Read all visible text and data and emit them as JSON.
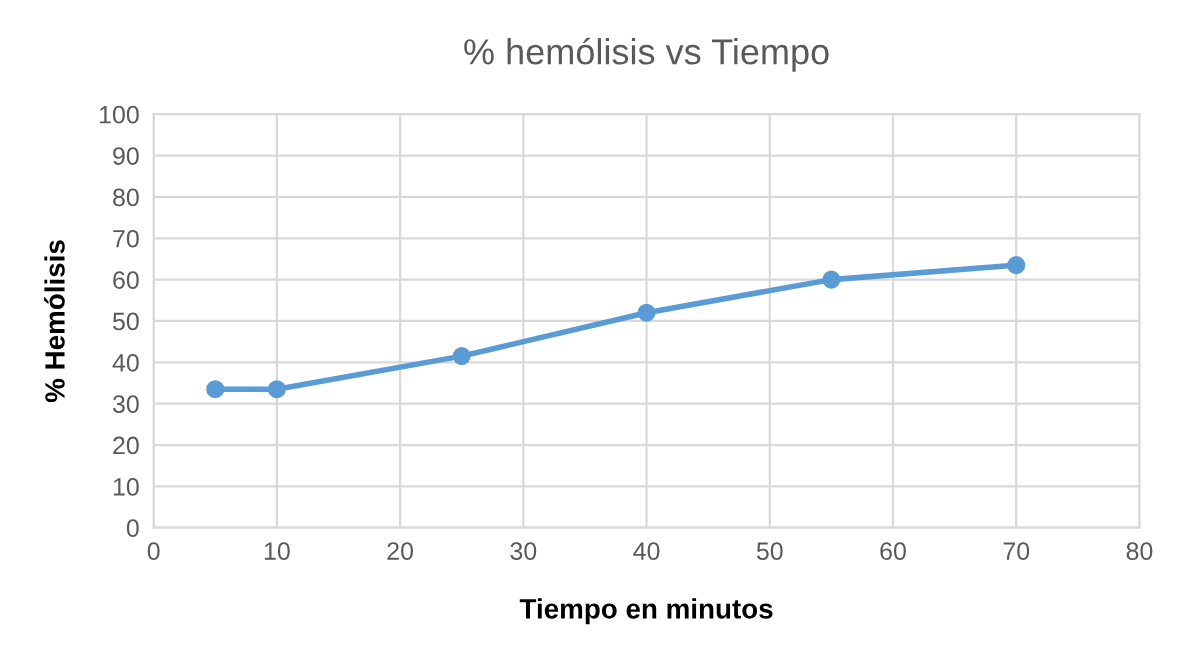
{
  "chart_data": {
    "type": "line",
    "title": "% hemólisis vs Tiempo",
    "xlabel": "Tiempo en minutos",
    "ylabel": "% Hemólisis",
    "x": [
      5,
      10,
      25,
      40,
      55,
      70
    ],
    "series": [
      {
        "color": "#5b9bd5",
        "values": [
          33.5,
          33.5,
          41.5,
          52,
          60,
          63.5
        ]
      }
    ],
    "xlim": [
      0,
      80
    ],
    "xticks": [
      0,
      10,
      20,
      30,
      40,
      50,
      60,
      70,
      80
    ],
    "ylim": [
      0,
      100
    ],
    "yticks": [
      0,
      10,
      20,
      30,
      40,
      50,
      60,
      70,
      80,
      90,
      100
    ],
    "grid": true,
    "marker": "circle",
    "line_style": "solid",
    "legend": false
  }
}
